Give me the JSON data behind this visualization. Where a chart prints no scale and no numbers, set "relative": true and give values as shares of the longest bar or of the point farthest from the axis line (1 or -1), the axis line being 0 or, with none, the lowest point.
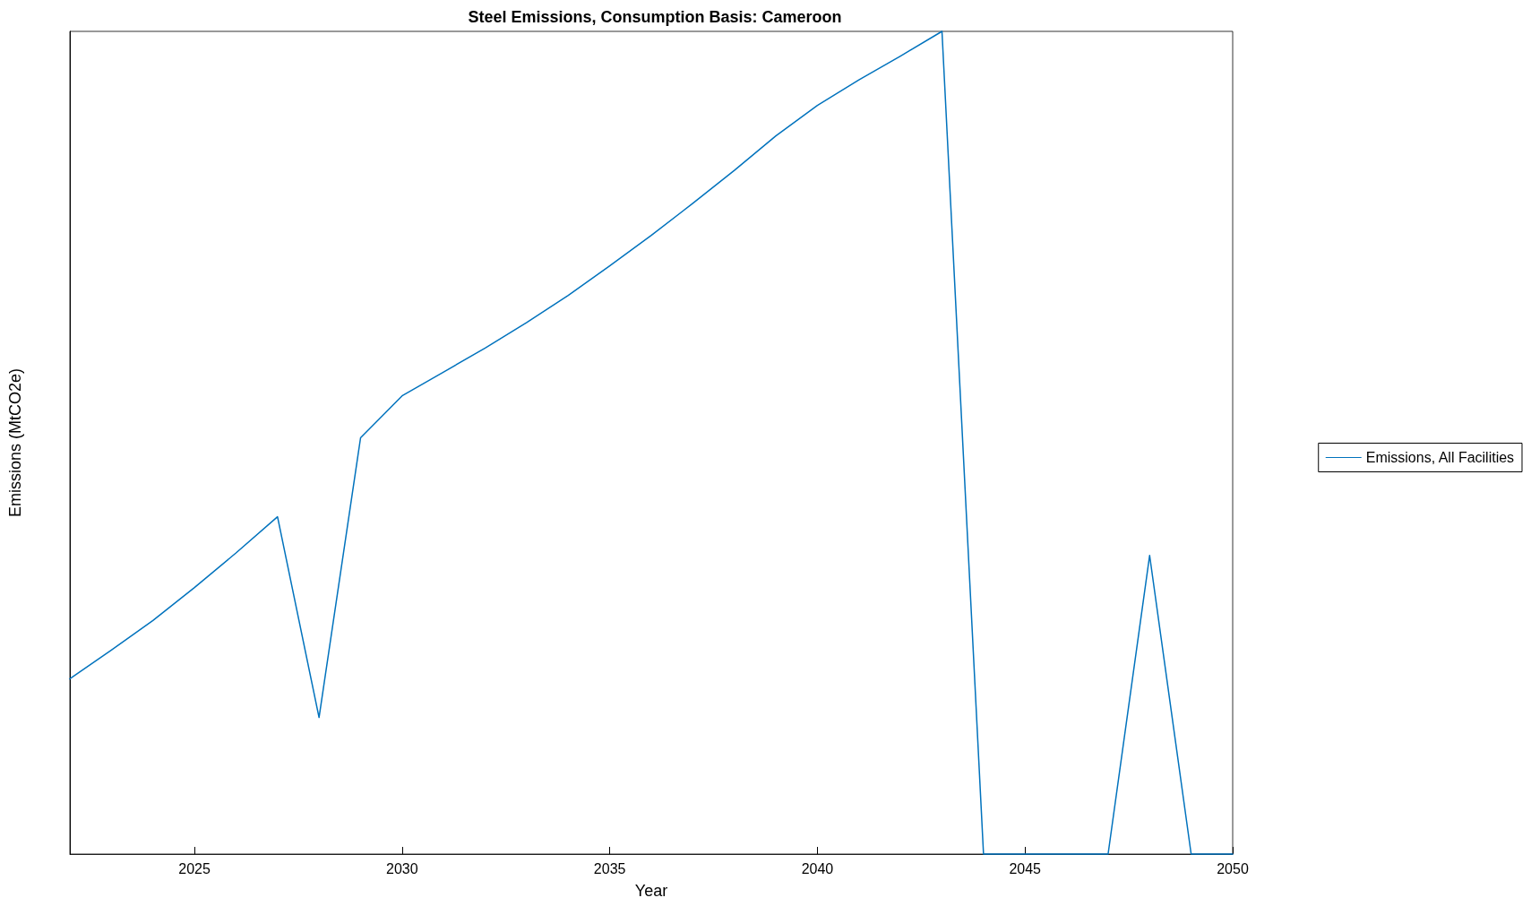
{
  "chart_data": {
    "type": "line",
    "title": "Steel Emissions, Consumption Basis: Cameroon",
    "xlabel": "Year",
    "ylabel": "Emissions (MtCO2e)",
    "relative": true,
    "legend": "right",
    "grid": false,
    "marker": "none",
    "line_style": "solid",
    "x": [
      2022,
      2023,
      2024,
      2025,
      2026,
      2027,
      2028,
      2029,
      2030,
      2031,
      2032,
      2033,
      2034,
      2035,
      2036,
      2037,
      2038,
      2039,
      2040,
      2041,
      2042,
      2043,
      2044,
      2045,
      2046,
      2047,
      2048,
      2049,
      2050
    ],
    "xlim": [
      2022,
      2050
    ],
    "xticks": [
      2025,
      2030,
      2035,
      2040,
      2045,
      2050
    ],
    "series": [
      {
        "name": "Emissions, All Facilities",
        "color": "#0072bd",
        "values": [
          0.213,
          0.248,
          0.284,
          0.324,
          0.366,
          0.41,
          0.166,
          0.506,
          0.557,
          0.586,
          0.615,
          0.646,
          0.679,
          0.715,
          0.752,
          0.791,
          0.831,
          0.873,
          0.91,
          0.941,
          0.97,
          1,
          0,
          0,
          0,
          0,
          0.363,
          0,
          0
        ]
      }
    ]
  }
}
